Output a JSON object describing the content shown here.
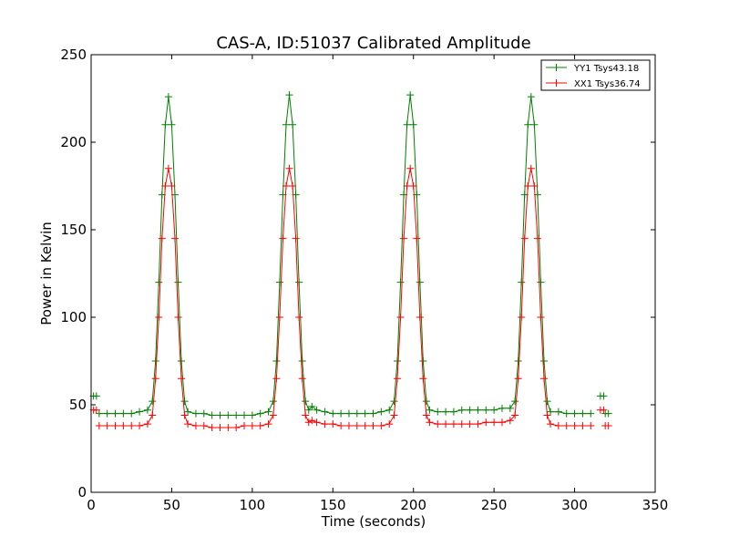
{
  "chart_data": {
    "type": "line",
    "title": "CAS-A, ID:51037 Calibrated Amplitude",
    "xlabel": "Time (seconds)",
    "ylabel": "Power in Kelvin",
    "xlim": [
      0,
      350
    ],
    "ylim": [
      0,
      250
    ],
    "xticks": [
      0,
      50,
      100,
      150,
      200,
      250,
      300,
      350
    ],
    "yticks": [
      0,
      50,
      100,
      150,
      200,
      250
    ],
    "grid": false,
    "legend_position": "top-right",
    "marker": "plus",
    "series": [
      {
        "name": "YY1 Tsys43.18",
        "color": "#008000",
        "segments": [
          {
            "x": [
              1.5,
              3.3
            ],
            "y": [
              55,
              55
            ]
          },
          {
            "x": [
              5,
              10,
              15,
              20,
              25,
              30,
              35,
              38,
              40,
              42,
              44,
              46,
              48,
              50,
              52,
              54,
              56,
              58,
              60,
              65,
              70,
              75,
              80,
              85,
              90,
              95,
              100,
              105,
              110,
              113,
              115,
              117,
              119,
              121,
              123,
              125,
              127,
              129,
              131,
              133,
              135,
              137,
              140,
              145,
              150,
              155,
              160,
              165,
              170,
              175,
              180,
              185,
              188,
              190,
              192,
              194,
              196,
              198,
              200,
              202,
              204,
              206,
              208,
              210,
              215,
              220,
              225,
              230,
              235,
              240,
              245,
              250,
              255,
              260,
              263,
              265,
              267,
              269,
              271,
              273,
              275,
              277,
              279,
              281,
              283,
              285,
              290,
              295,
              300,
              305,
              310
            ],
            "y": [
              45,
              45,
              45,
              45,
              45,
              46,
              47,
              52,
              75,
              120,
              170,
              210,
              226,
              210,
              170,
              120,
              75,
              52,
              46,
              45,
              45,
              44,
              44,
              44,
              44,
              44,
              44,
              45,
              46,
              52,
              75,
              120,
              170,
              210,
              227,
              210,
              170,
              120,
              75,
              52,
              47,
              49,
              47,
              46,
              45,
              45,
              45,
              45,
              45,
              45,
              46,
              47,
              52,
              75,
              120,
              170,
              210,
              227,
              210,
              170,
              120,
              75,
              52,
              47,
              46,
              46,
              46,
              47,
              47,
              47,
              47,
              47,
              48,
              48,
              52,
              75,
              120,
              170,
              210,
              226,
              210,
              170,
              120,
              75,
              52,
              46,
              46,
              45,
              45,
              45,
              45
            ]
          },
          {
            "x": [
              316,
              318
            ],
            "y": [
              55,
              55
            ]
          },
          {
            "x": [
              319,
              321
            ],
            "y": [
              45,
              45
            ]
          }
        ]
      },
      {
        "name": "XX1 Tsys36.74",
        "color": "#ff0000",
        "segments": [
          {
            "x": [
              1.5,
              3.3
            ],
            "y": [
              47,
              47
            ]
          },
          {
            "x": [
              5,
              10,
              15,
              20,
              25,
              30,
              35,
              38,
              40,
              42,
              44,
              46,
              48,
              50,
              52,
              54,
              56,
              58,
              60,
              65,
              70,
              75,
              80,
              85,
              90,
              95,
              100,
              105,
              110,
              113,
              115,
              117,
              119,
              121,
              123,
              125,
              127,
              129,
              131,
              133,
              135,
              137,
              140,
              145,
              150,
              155,
              160,
              165,
              170,
              175,
              180,
              185,
              188,
              190,
              192,
              194,
              196,
              198,
              200,
              202,
              204,
              206,
              208,
              210,
              215,
              220,
              225,
              230,
              235,
              240,
              245,
              250,
              255,
              260,
              263,
              265,
              267,
              269,
              271,
              273,
              275,
              277,
              279,
              281,
              283,
              285,
              290,
              295,
              300,
              305,
              310
            ],
            "y": [
              38,
              38,
              38,
              38,
              38,
              38,
              39,
              44,
              65,
              100,
              145,
              175,
              185,
              175,
              145,
              100,
              65,
              44,
              39,
              38,
              38,
              37,
              37,
              37,
              37,
              38,
              38,
              38,
              39,
              44,
              65,
              100,
              145,
              175,
              185,
              175,
              145,
              100,
              65,
              44,
              40,
              41,
              40,
              39,
              39,
              38,
              38,
              38,
              38,
              38,
              38,
              39,
              44,
              65,
              100,
              145,
              175,
              185,
              175,
              145,
              100,
              65,
              44,
              40,
              39,
              39,
              39,
              39,
              39,
              39,
              40,
              40,
              40,
              41,
              44,
              65,
              100,
              145,
              175,
              185,
              175,
              145,
              100,
              65,
              44,
              39,
              38,
              38,
              38,
              38,
              38
            ]
          },
          {
            "x": [
              316,
              318
            ],
            "y": [
              47,
              47
            ]
          },
          {
            "x": [
              319,
              321
            ],
            "y": [
              38,
              38
            ]
          }
        ]
      }
    ]
  }
}
